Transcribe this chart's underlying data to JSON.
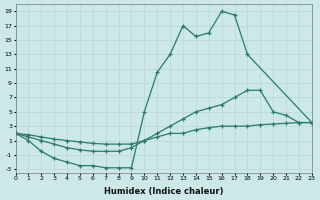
{
  "xlabel": "Humidex (Indice chaleur)",
  "background_color": "#cce8e8",
  "grid_color": "#b8d8d8",
  "line_color": "#2a7a6a",
  "xlim": [
    0,
    23
  ],
  "ylim": [
    -3.5,
    20
  ],
  "series": [
    {
      "x": [
        0,
        1,
        2,
        3,
        4,
        5,
        6,
        7,
        8,
        9,
        10,
        11,
        12,
        13,
        14,
        15,
        16,
        17,
        18,
        23
      ],
      "y": [
        2,
        1,
        -0.5,
        -1.5,
        -2,
        -2.5,
        -2.5,
        -2.8,
        -2.8,
        -2.8,
        5,
        10.5,
        13,
        17,
        15.5,
        16,
        19,
        18.5,
        13,
        3.5
      ]
    },
    {
      "x": [
        0,
        1,
        2,
        3,
        4,
        5,
        6,
        7,
        8,
        9,
        10,
        11,
        12,
        13,
        14,
        15,
        16,
        17,
        18,
        19,
        20,
        21,
        22,
        23
      ],
      "y": [
        2,
        1.5,
        1,
        0.5,
        0,
        -0.3,
        -0.5,
        -0.5,
        -0.5,
        0,
        1,
        2,
        3,
        4,
        5,
        5.5,
        6,
        7,
        8,
        8,
        5,
        4.5,
        3.5,
        3.5
      ]
    },
    {
      "x": [
        0,
        1,
        2,
        3,
        4,
        5,
        6,
        7,
        8,
        9,
        10,
        11,
        12,
        13,
        14,
        15,
        16,
        17,
        18,
        19,
        20,
        21,
        22,
        23
      ],
      "y": [
        2,
        1.8,
        1.5,
        1.2,
        1.0,
        0.8,
        0.6,
        0.5,
        0.5,
        0.5,
        1,
        1.5,
        2,
        2,
        2.5,
        2.8,
        3,
        3,
        3,
        3.2,
        3.3,
        3.4,
        3.5,
        3.5
      ]
    }
  ]
}
